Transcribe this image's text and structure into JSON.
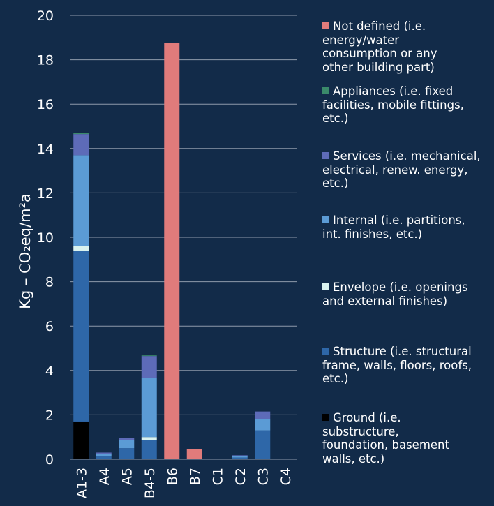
{
  "chart_data": {
    "type": "bar",
    "stacked": true,
    "categories": [
      "A1-3",
      "A4",
      "A5",
      "B4-5",
      "B6",
      "B7",
      "C1",
      "C2",
      "C3",
      "C4"
    ],
    "ylabel": "Kg – CO₂eq/m²a",
    "ylim": [
      0,
      20
    ],
    "yticks": [
      "0",
      "2",
      "4",
      "6",
      "8",
      "10",
      "12",
      "14",
      "16",
      "18",
      "20"
    ],
    "grid": true,
    "legend_position": "right",
    "series": [
      {
        "name": "Ground (i.e.\nsubstructure,\nfoundation, basement\nwalls, etc.)",
        "color": "#000000",
        "values": [
          1.7,
          0,
          0,
          0,
          0,
          0,
          0,
          0,
          0,
          0
        ]
      },
      {
        "name": "Structure (i.e. structural\nframe, walls, floors, roofs,\netc.)",
        "color": "#2e67a8",
        "values": [
          7.7,
          0.15,
          0.5,
          0.85,
          0,
          0,
          0,
          0.08,
          1.3,
          0
        ]
      },
      {
        "name": "Envelope (i.e. openings\nand external finishes)",
        "color": "#d9f2ef",
        "values": [
          0.2,
          0,
          0,
          0.15,
          0,
          0,
          0,
          0,
          0,
          0
        ]
      },
      {
        "name": "Internal (i.e. partitions,\nint. finishes, etc.)",
        "color": "#5b9bd5",
        "values": [
          4.1,
          0.1,
          0.35,
          2.65,
          0,
          0,
          0,
          0.08,
          0.5,
          0
        ]
      },
      {
        "name": "Services (i.e. mechanical,\nelectrical, renew. energy,\netc.)",
        "color": "#5d6bb8",
        "values": [
          0.95,
          0.05,
          0.1,
          1.0,
          0,
          0,
          0,
          0.02,
          0.35,
          0
        ]
      },
      {
        "name": "Appliances (i.e. fixed\nfacilities, mobile fittings,\netc.)",
        "color": "#3a8a6a",
        "values": [
          0.05,
          0,
          0,
          0.03,
          0,
          0,
          0,
          0,
          0,
          0
        ]
      },
      {
        "name": "Not defined (i.e.\nenergy/water\nconsumption or any\nother building part)",
        "color": "#e07b7b",
        "values": [
          0,
          0,
          0,
          0,
          18.75,
          0.45,
          0,
          0,
          0,
          0
        ]
      }
    ]
  }
}
